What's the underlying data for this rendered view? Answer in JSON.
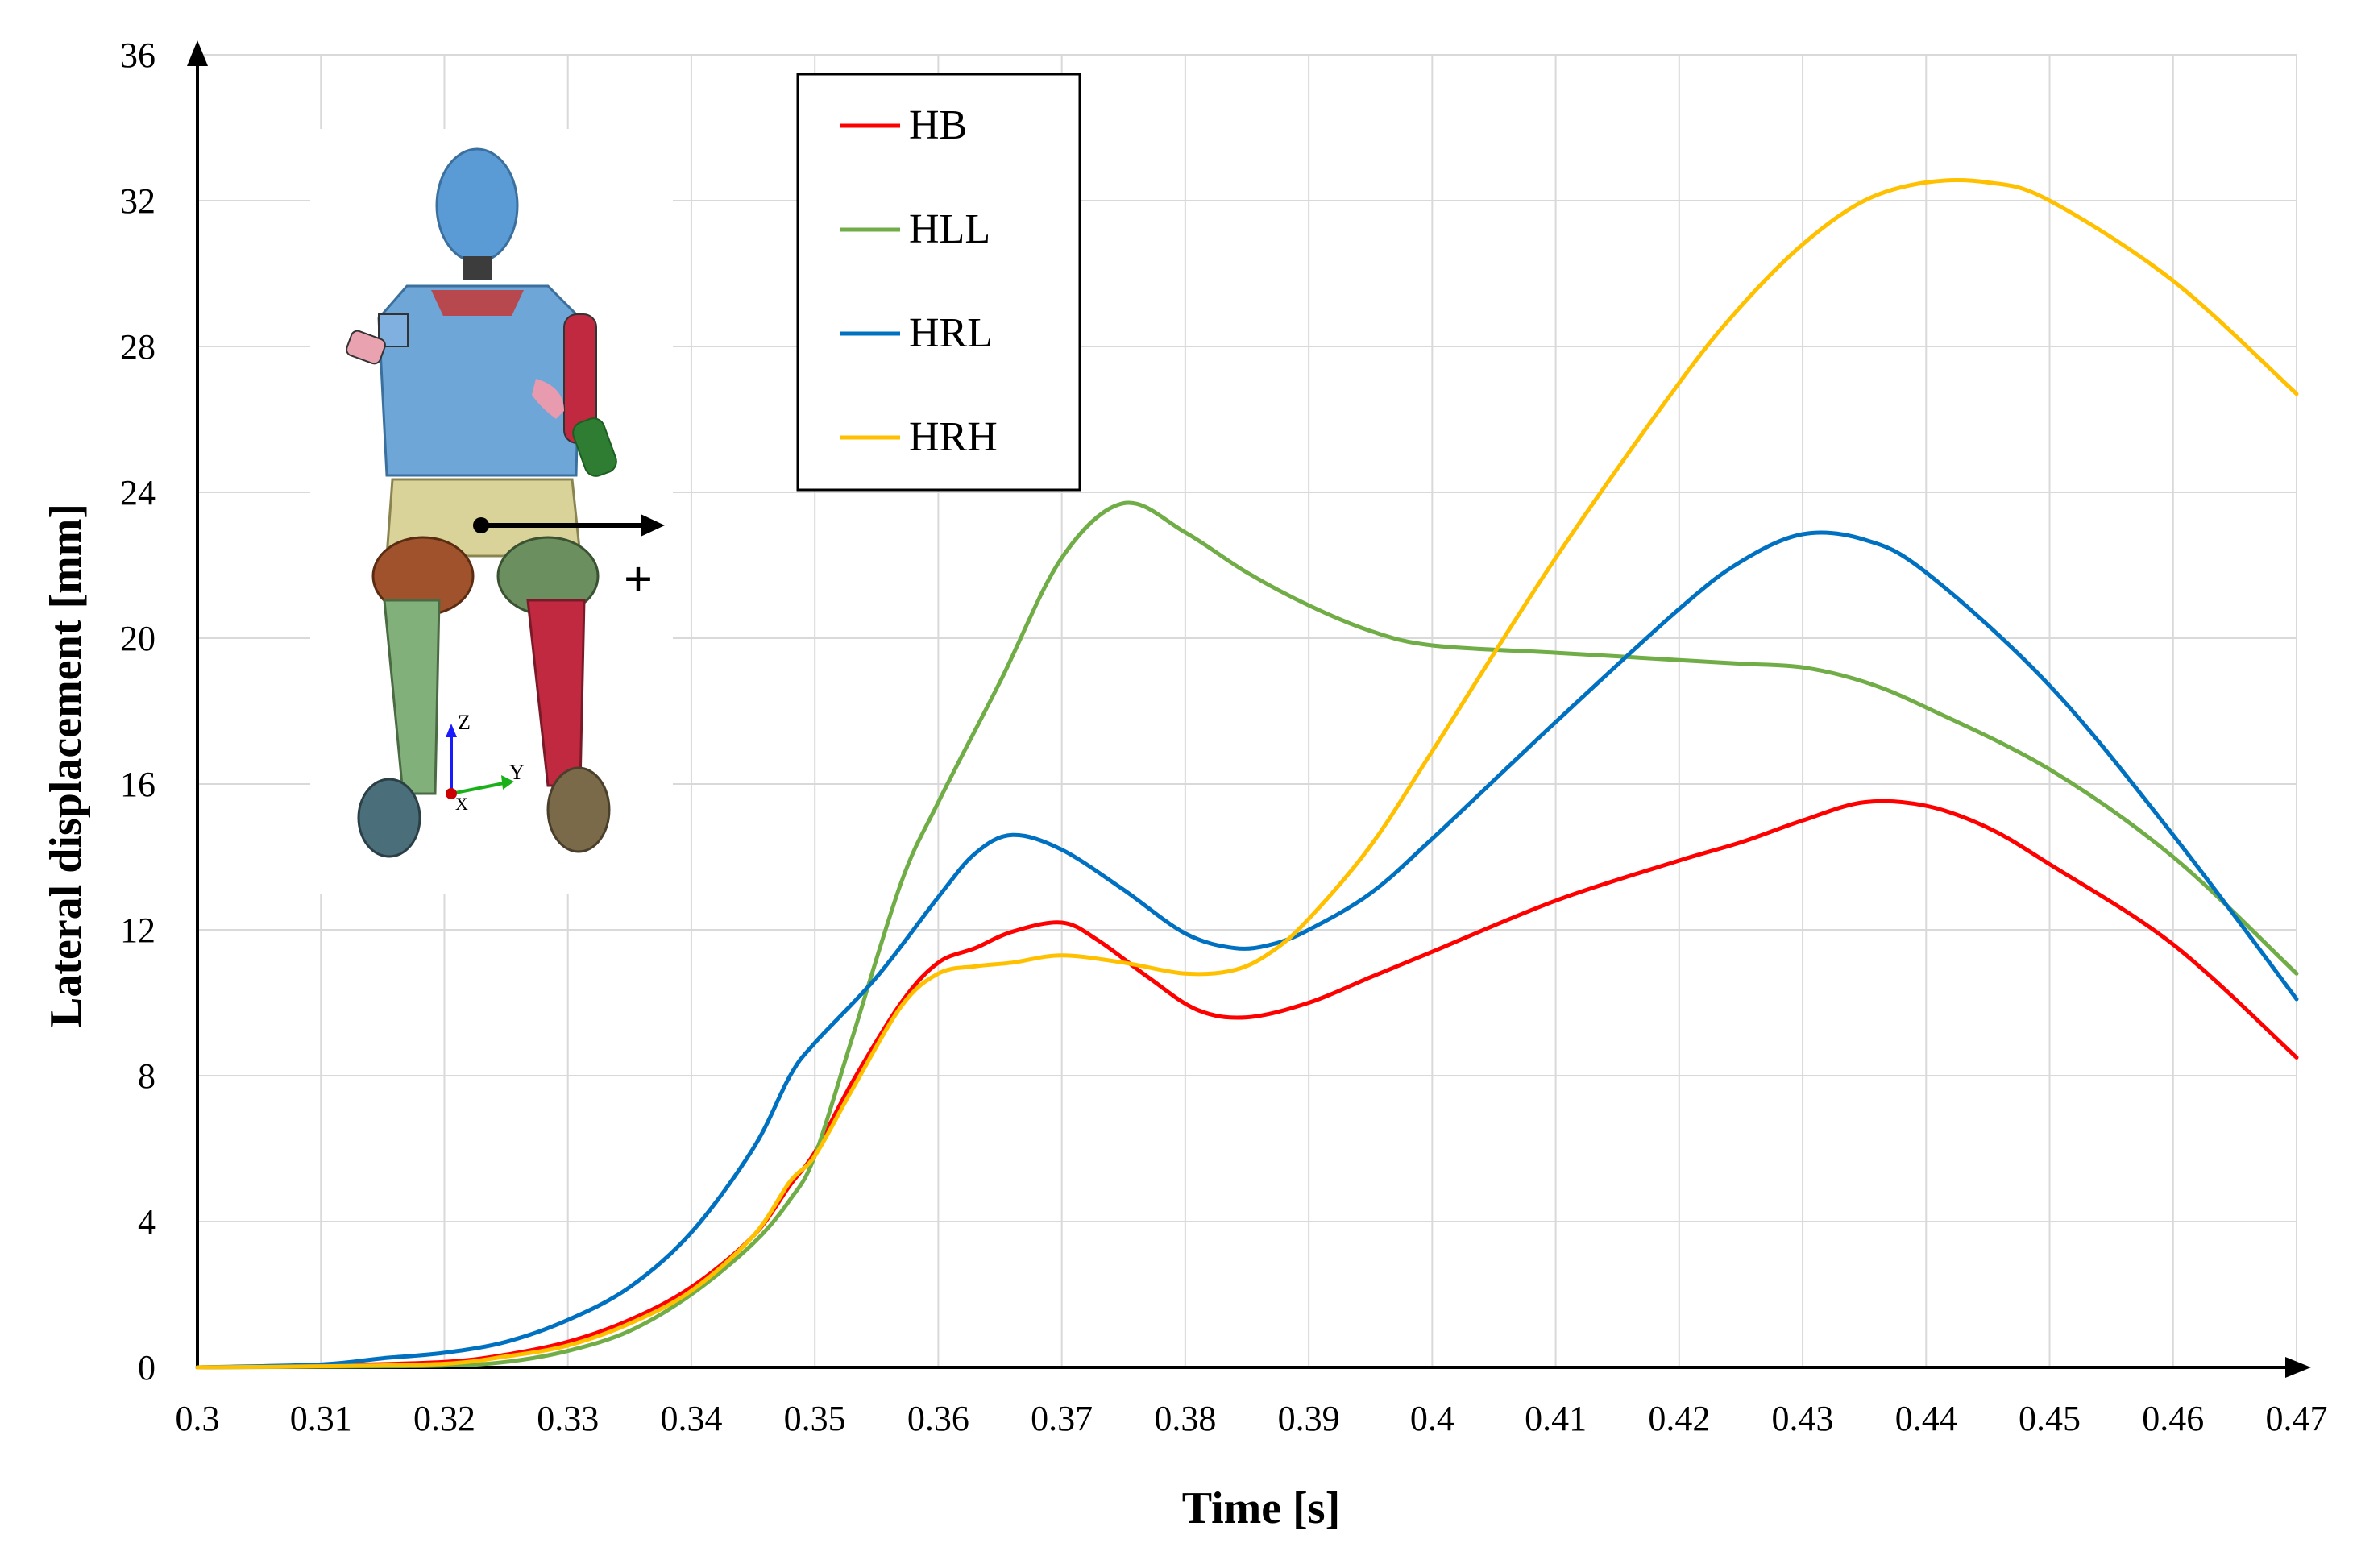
{
  "chart_data": {
    "type": "line",
    "xlabel": "Time [s]",
    "ylabel": "Lateral displacement [mm]",
    "xlim": [
      0.3,
      0.47
    ],
    "ylim": [
      0,
      36
    ],
    "xticks": [
      "0.3",
      "0.31",
      "0.32",
      "0.33",
      "0.34",
      "0.35",
      "0.36",
      "0.37",
      "0.38",
      "0.39",
      "0.4",
      "0.41",
      "0.42",
      "0.43",
      "0.44",
      "0.45",
      "0.46",
      "0.47"
    ],
    "yticks": [
      "0",
      "4",
      "8",
      "12",
      "16",
      "20",
      "24",
      "28",
      "32",
      "36"
    ],
    "grid": true,
    "legend_position": "top-center",
    "series": [
      {
        "name": "HB",
        "color": "#ff0000",
        "points": [
          [
            0.3,
            0
          ],
          [
            0.31,
            0.05
          ],
          [
            0.32,
            0.15
          ],
          [
            0.325,
            0.35
          ],
          [
            0.33,
            0.7
          ],
          [
            0.335,
            1.3
          ],
          [
            0.34,
            2.2
          ],
          [
            0.345,
            3.6
          ],
          [
            0.348,
            5.0
          ],
          [
            0.35,
            5.9
          ],
          [
            0.353,
            7.8
          ],
          [
            0.357,
            10.0
          ],
          [
            0.36,
            11.1
          ],
          [
            0.363,
            11.5
          ],
          [
            0.366,
            11.95
          ],
          [
            0.37,
            12.2
          ],
          [
            0.373,
            11.7
          ],
          [
            0.377,
            10.7
          ],
          [
            0.381,
            9.8
          ],
          [
            0.385,
            9.6
          ],
          [
            0.39,
            10.0
          ],
          [
            0.395,
            10.7
          ],
          [
            0.4,
            11.4
          ],
          [
            0.41,
            12.8
          ],
          [
            0.42,
            13.9
          ],
          [
            0.425,
            14.4
          ],
          [
            0.43,
            15.0
          ],
          [
            0.435,
            15.5
          ],
          [
            0.44,
            15.4
          ],
          [
            0.445,
            14.8
          ],
          [
            0.45,
            13.8
          ],
          [
            0.46,
            11.6
          ],
          [
            0.47,
            8.5
          ]
        ]
      },
      {
        "name": "HLL",
        "color": "#70ad47",
        "points": [
          [
            0.3,
            0
          ],
          [
            0.31,
            0.02
          ],
          [
            0.32,
            0.05
          ],
          [
            0.325,
            0.15
          ],
          [
            0.33,
            0.45
          ],
          [
            0.335,
            1.0
          ],
          [
            0.34,
            2.0
          ],
          [
            0.345,
            3.4
          ],
          [
            0.348,
            4.6
          ],
          [
            0.35,
            5.8
          ],
          [
            0.353,
            9.0
          ],
          [
            0.357,
            13.3
          ],
          [
            0.36,
            15.5
          ],
          [
            0.365,
            18.8
          ],
          [
            0.37,
            22.2
          ],
          [
            0.375,
            23.7
          ],
          [
            0.38,
            22.9
          ],
          [
            0.385,
            21.8
          ],
          [
            0.39,
            20.9
          ],
          [
            0.395,
            20.2
          ],
          [
            0.4,
            19.8
          ],
          [
            0.41,
            19.6
          ],
          [
            0.42,
            19.4
          ],
          [
            0.425,
            19.3
          ],
          [
            0.43,
            19.2
          ],
          [
            0.435,
            18.8
          ],
          [
            0.44,
            18.1
          ],
          [
            0.45,
            16.4
          ],
          [
            0.46,
            14.0
          ],
          [
            0.47,
            10.8
          ]
        ]
      },
      {
        "name": "HRL",
        "color": "#0070c0",
        "points": [
          [
            0.3,
            0
          ],
          [
            0.31,
            0.08
          ],
          [
            0.315,
            0.25
          ],
          [
            0.32,
            0.4
          ],
          [
            0.325,
            0.7
          ],
          [
            0.33,
            1.3
          ],
          [
            0.335,
            2.2
          ],
          [
            0.34,
            3.7
          ],
          [
            0.345,
            6.0
          ],
          [
            0.348,
            8.0
          ],
          [
            0.35,
            8.9
          ],
          [
            0.355,
            10.7
          ],
          [
            0.36,
            12.9
          ],
          [
            0.363,
            14.1
          ],
          [
            0.366,
            14.6
          ],
          [
            0.37,
            14.2
          ],
          [
            0.375,
            13.1
          ],
          [
            0.38,
            11.9
          ],
          [
            0.384,
            11.5
          ],
          [
            0.387,
            11.6
          ],
          [
            0.39,
            12.0
          ],
          [
            0.395,
            13.0
          ],
          [
            0.4,
            14.5
          ],
          [
            0.41,
            17.7
          ],
          [
            0.42,
            20.8
          ],
          [
            0.425,
            22.1
          ],
          [
            0.43,
            22.85
          ],
          [
            0.435,
            22.7
          ],
          [
            0.44,
            21.8
          ],
          [
            0.45,
            18.7
          ],
          [
            0.46,
            14.6
          ],
          [
            0.47,
            10.1
          ]
        ]
      },
      {
        "name": "HRH",
        "color": "#ffc000",
        "points": [
          [
            0.3,
            0
          ],
          [
            0.31,
            0.03
          ],
          [
            0.32,
            0.1
          ],
          [
            0.325,
            0.3
          ],
          [
            0.33,
            0.6
          ],
          [
            0.335,
            1.2
          ],
          [
            0.34,
            2.1
          ],
          [
            0.345,
            3.6
          ],
          [
            0.348,
            5.1
          ],
          [
            0.35,
            5.8
          ],
          [
            0.353,
            7.6
          ],
          [
            0.357,
            9.9
          ],
          [
            0.36,
            10.8
          ],
          [
            0.363,
            11.0
          ],
          [
            0.366,
            11.1
          ],
          [
            0.37,
            11.3
          ],
          [
            0.375,
            11.1
          ],
          [
            0.38,
            10.8
          ],
          [
            0.384,
            10.9
          ],
          [
            0.387,
            11.4
          ],
          [
            0.39,
            12.3
          ],
          [
            0.395,
            14.3
          ],
          [
            0.4,
            16.9
          ],
          [
            0.41,
            22.2
          ],
          [
            0.42,
            27.0
          ],
          [
            0.425,
            29.1
          ],
          [
            0.43,
            30.8
          ],
          [
            0.435,
            32.0
          ],
          [
            0.44,
            32.5
          ],
          [
            0.445,
            32.5
          ],
          [
            0.45,
            32.0
          ],
          [
            0.46,
            29.8
          ],
          [
            0.47,
            26.7
          ]
        ]
      }
    ]
  },
  "inset": {
    "arrow_sign": "+",
    "axis_z": "Z",
    "axis_y": "Y",
    "axis_x": "X"
  }
}
